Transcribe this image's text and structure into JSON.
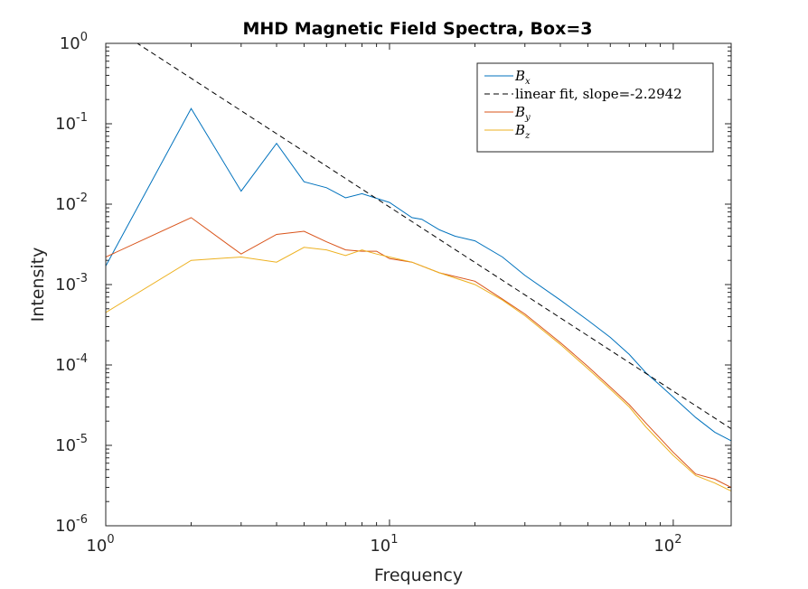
{
  "chart_data": {
    "type": "line",
    "title": "MHD Magnetic Field Spectra, Box=3",
    "xlabel": "Frequency",
    "ylabel": "Intensity",
    "xscale": "log",
    "yscale": "log",
    "xlim": [
      1,
      160
    ],
    "ylim": [
      1e-06,
      1
    ],
    "xticks": [
      {
        "value": 1,
        "base": "10",
        "exp": "0"
      },
      {
        "value": 10,
        "base": "10",
        "exp": "1"
      },
      {
        "value": 100,
        "base": "10",
        "exp": "2"
      }
    ],
    "yticks": [
      {
        "value": 1,
        "base": "10",
        "exp": "0"
      },
      {
        "value": 0.1,
        "base": "10",
        "exp": "-1"
      },
      {
        "value": 0.01,
        "base": "10",
        "exp": "-2"
      },
      {
        "value": 0.001,
        "base": "10",
        "exp": "-3"
      },
      {
        "value": 0.0001,
        "base": "10",
        "exp": "-4"
      },
      {
        "value": 1e-05,
        "base": "10",
        "exp": "-5"
      },
      {
        "value": 1e-06,
        "base": "10",
        "exp": "-6"
      }
    ],
    "legend": {
      "location": "top-right"
    },
    "series": [
      {
        "name": "B",
        "sub": "x",
        "color": "#0072BD",
        "style": "solid",
        "x": [
          1,
          2,
          3,
          4,
          5,
          6,
          7,
          8,
          10,
          12,
          13,
          15,
          17,
          20,
          25,
          30,
          40,
          50,
          60,
          70,
          80,
          90,
          100,
          120,
          140,
          160
        ],
        "y": [
          0.0017,
          0.155,
          0.0145,
          0.057,
          0.019,
          0.016,
          0.012,
          0.0135,
          0.0105,
          0.0068,
          0.0065,
          0.0048,
          0.004,
          0.0035,
          0.0022,
          0.0013,
          0.00064,
          0.00036,
          0.00022,
          0.000135,
          8.02e-05,
          5.57e-05,
          3.98e-05,
          2.22e-05,
          1.46e-05,
          1.14e-05
        ]
      },
      {
        "name": "linear fit, slope=-2.2942",
        "color": "#000000",
        "style": "dashed",
        "x": [
          1,
          160
        ],
        "y": [
          1.8,
          1.61e-05
        ]
      },
      {
        "name": "B",
        "sub": "y",
        "color": "#D95319",
        "style": "solid",
        "x": [
          1,
          2,
          3,
          4,
          5,
          6,
          7,
          8,
          9,
          10,
          12,
          15,
          20,
          25,
          30,
          40,
          50,
          60,
          70,
          80,
          100,
          120,
          140,
          160
        ],
        "y": [
          0.0022,
          0.0068,
          0.0024,
          0.0042,
          0.0046,
          0.0034,
          0.0027,
          0.0026,
          0.0026,
          0.0021,
          0.0019,
          0.0014,
          0.0011,
          0.00066,
          0.00043,
          0.00019,
          9.6e-05,
          5.3e-05,
          3.2e-05,
          1.9e-05,
          8.2e-06,
          4.4e-06,
          3.8e-06,
          3e-06
        ]
      },
      {
        "name": "B",
        "sub": "z",
        "color": "#EDB120",
        "style": "solid",
        "x": [
          1,
          2,
          3,
          4,
          5,
          6,
          7,
          8,
          9,
          10,
          12,
          15,
          20,
          25,
          30,
          40,
          50,
          60,
          70,
          80,
          100,
          120,
          140,
          160
        ],
        "y": [
          0.00045,
          0.002,
          0.0022,
          0.0019,
          0.0029,
          0.0027,
          0.0023,
          0.0027,
          0.0024,
          0.0022,
          0.0019,
          0.0014,
          0.001,
          0.00064,
          0.00041,
          0.00018,
          9e-05,
          5e-05,
          3e-05,
          1.7e-05,
          7.5e-06,
          4.2e-06,
          3.4e-06,
          2.7e-06
        ]
      }
    ]
  }
}
